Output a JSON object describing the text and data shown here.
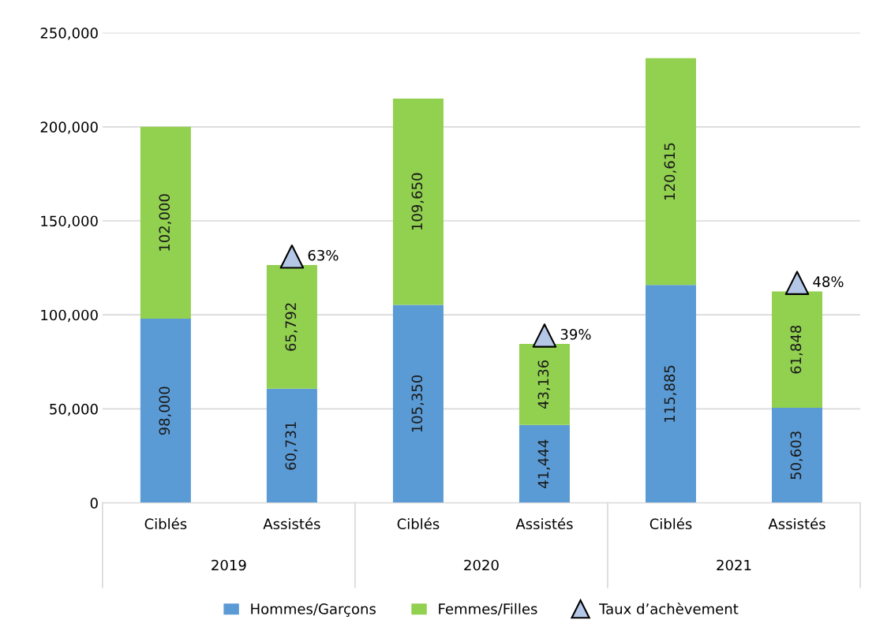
{
  "chart_data": {
    "type": "bar",
    "stacked": true,
    "categories": [
      "Ciblés",
      "Assistés",
      "Ciblés",
      "Assistés",
      "Ciblés",
      "Assistés"
    ],
    "series": [
      {
        "name": "Hommes/Garçons",
        "color": "#5b9bd5",
        "values": [
          98000,
          60731,
          105350,
          41444,
          115885,
          50603
        ],
        "value_labels": [
          "98,000",
          "60,731",
          "105,350",
          "41,444",
          "115,885",
          "50,603"
        ]
      },
      {
        "name": "Femmes/Filles",
        "color": "#92d050",
        "values": [
          102000,
          65792,
          109650,
          43136,
          120615,
          61848
        ],
        "value_labels": [
          "102,000",
          "65,792",
          "109,650",
          "43,136",
          "120,615",
          "61,848"
        ]
      },
      {
        "name": "Taux d’achèvement",
        "type": "scatter",
        "marker": "triangle",
        "color": "#b4c7e7",
        "values": [
          null,
          131000,
          null,
          89000,
          null,
          117000
        ]
      }
    ],
    "ylim": [
      0,
      250000
    ],
    "yticks": [
      {
        "value": 0,
        "label": "0"
      },
      {
        "value": 50000,
        "label": "50,000"
      },
      {
        "value": 100000,
        "label": "100,000"
      },
      {
        "value": 150000,
        "label": "150,000"
      },
      {
        "value": 200000,
        "label": "200,000"
      },
      {
        "value": 250000,
        "label": "250,000"
      }
    ],
    "grid": "y",
    "legend": "bottom",
    "annotations": [
      "2019",
      "2020",
      "2021",
      "63%",
      "39%",
      "48%"
    ]
  }
}
